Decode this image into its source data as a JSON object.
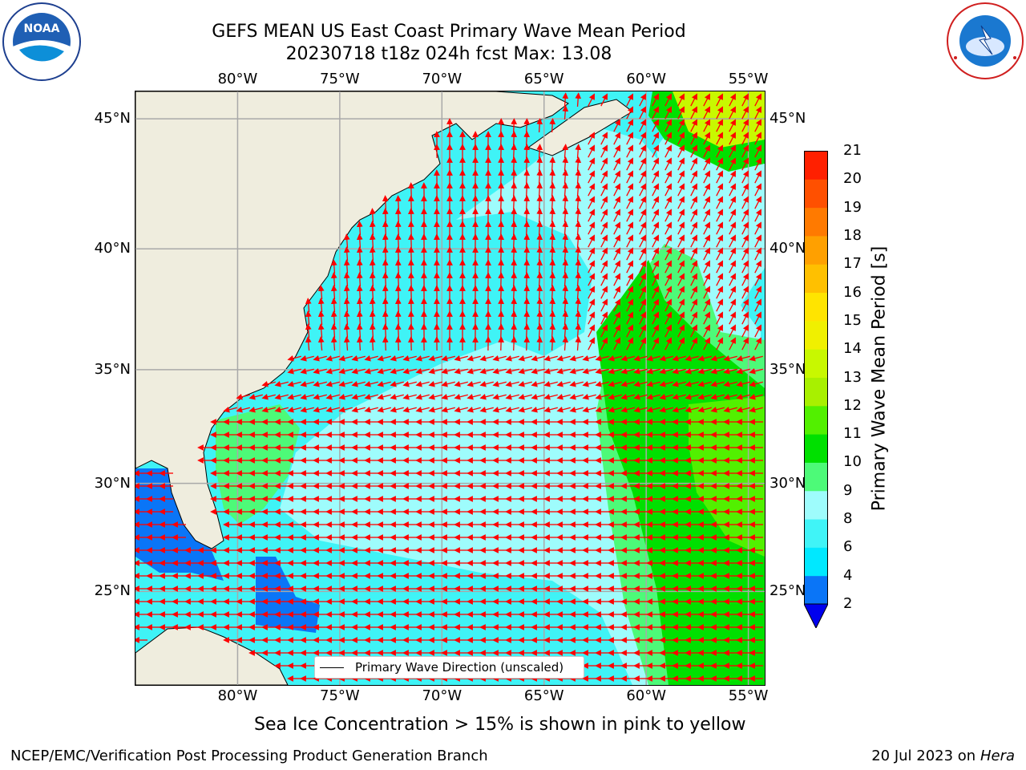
{
  "title": {
    "line1": "GEFS MEAN US East Coast Primary Wave Mean Period",
    "line2": "20230718 t18z 024h fcst   Max: 13.08"
  },
  "logos": {
    "left": {
      "name": "noaa-logo",
      "text": "NOAA",
      "ring_text": "NATIONAL OCEANIC AND ATMOSPHERIC ADMINISTRATION · U.S. DEPARTMENT OF COMMERCE"
    },
    "right": {
      "name": "nws-logo",
      "ring_text": "NATIONAL WEATHER SERVICE"
    }
  },
  "map": {
    "type": "filled-contour map with direction arrows",
    "region": "US East Coast / western North Atlantic",
    "lon_range": [
      -85,
      -54.2
    ],
    "lat_range": [
      20.5,
      46
    ],
    "lon_ticks": [
      {
        "value": -80,
        "label": "80°W"
      },
      {
        "value": -75,
        "label": "75°W"
      },
      {
        "value": -70,
        "label": "70°W"
      },
      {
        "value": -65,
        "label": "65°W"
      },
      {
        "value": -60,
        "label": "60°W"
      },
      {
        "value": -55,
        "label": "55°W"
      }
    ],
    "lat_ticks": [
      {
        "value": 45,
        "label": "45°N"
      },
      {
        "value": 40,
        "label": "40°N"
      },
      {
        "value": 35,
        "label": "35°N"
      },
      {
        "value": 30,
        "label": "30°N"
      },
      {
        "value": 25,
        "label": "25°N"
      }
    ],
    "grid": true,
    "land_color": "#efedde",
    "arrow_color": "#ff0000",
    "legend": {
      "label": "Primary Wave Direction (unscaled)",
      "placement": "bottom-center"
    }
  },
  "colorbar": {
    "label": "Primary Wave Mean Period [s]",
    "tick_labels": [
      "2",
      "4",
      "6",
      "8",
      "9",
      "10",
      "11",
      "12",
      "13",
      "14",
      "15",
      "16",
      "17",
      "18",
      "19",
      "20",
      "21"
    ],
    "levels": [
      2,
      4,
      6,
      8,
      9,
      10,
      11,
      12,
      13,
      14,
      15,
      16,
      17,
      18,
      19,
      20,
      21
    ],
    "colors": [
      "#0a75f7",
      "#00e8ff",
      "#40f4f7",
      "#9efcfc",
      "#4dfa78",
      "#00e000",
      "#52f000",
      "#a8f000",
      "#c8f800",
      "#f0f000",
      "#ffe400",
      "#ffc000",
      "#ffa000",
      "#ff7a00",
      "#ff5000",
      "#ff2000"
    ],
    "under_color": "#0000ee",
    "extend": "min"
  },
  "footnote": "Sea Ice Concentration > 15% is shown in pink to yellow",
  "credits": {
    "left": "NCEP/EMC/Verification Post Processing Product Generation Branch",
    "right_prefix": "20 Jul 2023 on ",
    "right_host": "Hera"
  }
}
